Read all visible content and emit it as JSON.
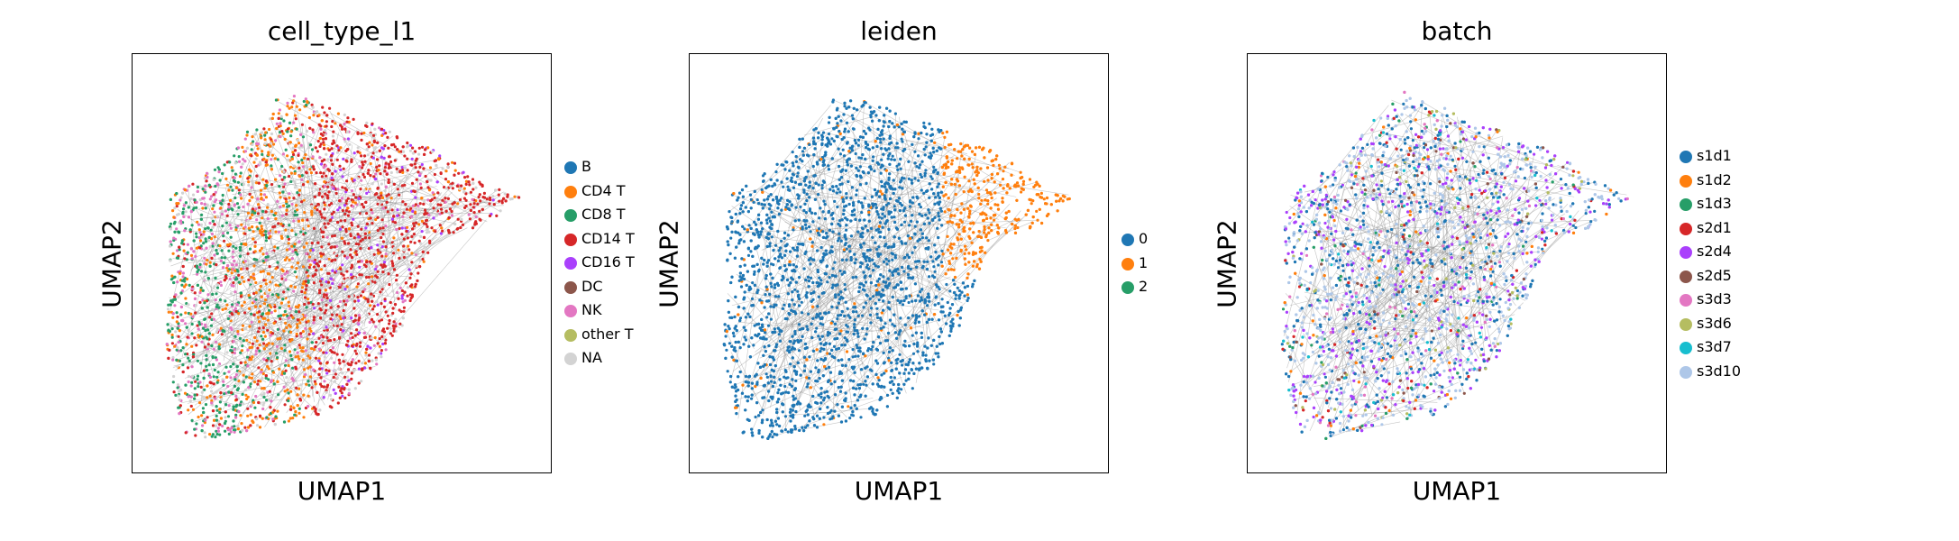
{
  "chart_data": [
    {
      "type": "scatter",
      "title": "cell_type_l1",
      "xlabel": "UMAP1",
      "ylabel": "UMAP2",
      "grid": false,
      "legend_position": "right",
      "categories": [
        {
          "label": "B",
          "color": "#1f77b4"
        },
        {
          "label": "CD4 T",
          "color": "#ff7f0e"
        },
        {
          "label": "CD8 T",
          "color": "#279e68"
        },
        {
          "label": "CD14 T",
          "color": "#d62728"
        },
        {
          "label": "CD16 T",
          "color": "#aa40fc"
        },
        {
          "label": "DC",
          "color": "#8c564b"
        },
        {
          "label": "NK",
          "color": "#e377c2"
        },
        {
          "label": "other T",
          "color": "#b5bd61"
        },
        {
          "label": "NA",
          "color": "#d3d3d3"
        }
      ]
    },
    {
      "type": "scatter",
      "title": "leiden",
      "xlabel": "UMAP1",
      "ylabel": "UMAP2",
      "grid": false,
      "legend_position": "right",
      "categories": [
        {
          "label": "0",
          "color": "#1f77b4"
        },
        {
          "label": "1",
          "color": "#ff7f0e"
        },
        {
          "label": "2",
          "color": "#279e68"
        }
      ]
    },
    {
      "type": "scatter",
      "title": "batch",
      "xlabel": "UMAP1",
      "ylabel": "UMAP2",
      "grid": false,
      "legend_position": "right",
      "categories": [
        {
          "label": "s1d1",
          "color": "#1f77b4"
        },
        {
          "label": "s1d2",
          "color": "#ff7f0e"
        },
        {
          "label": "s1d3",
          "color": "#279e68"
        },
        {
          "label": "s2d1",
          "color": "#d62728"
        },
        {
          "label": "s2d4",
          "color": "#aa40fc"
        },
        {
          "label": "s2d5",
          "color": "#8c564b"
        },
        {
          "label": "s3d3",
          "color": "#e377c2"
        },
        {
          "label": "s3d6",
          "color": "#b5bd61"
        },
        {
          "label": "s3d7",
          "color": "#17becf"
        },
        {
          "label": "s3d10",
          "color": "#aec7e8"
        }
      ]
    }
  ],
  "style": {
    "edge_color": "#808080",
    "frame_color": "#000000"
  }
}
